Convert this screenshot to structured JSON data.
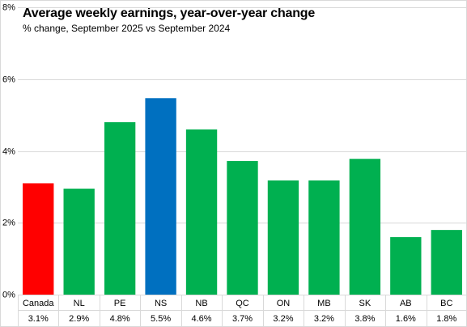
{
  "chart_data": {
    "type": "bar",
    "title": "Average weekly earnings, year-over-year change",
    "subtitle": "% change, September  2025 vs September 2024",
    "xlabel": "",
    "ylabel": "",
    "ylim": [
      0,
      8
    ],
    "yticks": [
      "0%",
      "2%",
      "4%",
      "6%",
      "8%"
    ],
    "grid": true,
    "categories": [
      "Canada",
      "NL",
      "PE",
      "NS",
      "NB",
      "QC",
      "ON",
      "MB",
      "SK",
      "AB",
      "BC"
    ],
    "values": [
      3.1,
      2.95,
      4.8,
      5.47,
      4.6,
      3.72,
      3.18,
      3.18,
      3.78,
      1.6,
      1.8
    ],
    "value_labels": [
      "3.1%",
      "2.9%",
      "4.8%",
      "5.5%",
      "4.6%",
      "3.7%",
      "3.2%",
      "3.2%",
      "3.8%",
      "1.6%",
      "1.8%"
    ],
    "colors": [
      "#ff0000",
      "#00b050",
      "#00b050",
      "#0070c0",
      "#00b050",
      "#00b050",
      "#00b050",
      "#00b050",
      "#00b050",
      "#00b050",
      "#00b050"
    ],
    "gridline_color": "#d9d9d9"
  }
}
